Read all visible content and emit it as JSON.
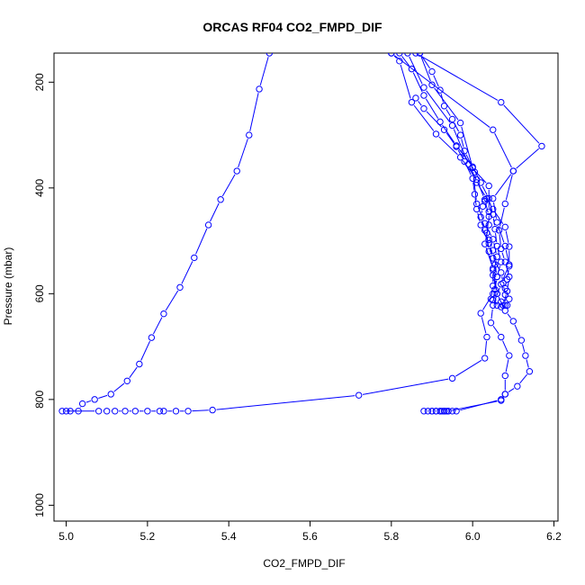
{
  "chart_data": {
    "type": "scatter",
    "title": "ORCAS RF04 CO2_FMPD_DIF",
    "xlabel": "CO2_FMPD_DIF",
    "ylabel": "Pressure (mbar)",
    "xlim": [
      4.97,
      6.21
    ],
    "ylim": [
      1030,
      145
    ],
    "y_axis_inverted": true,
    "xticks": [
      "5.0",
      "5.2",
      "5.4",
      "5.6",
      "5.8",
      "6.0",
      "6.2"
    ],
    "yticks": [
      "200",
      "400",
      "600",
      "800",
      "1000"
    ],
    "colors": {
      "series": "#0000ff",
      "axes": "#000000",
      "background": "#ffffff"
    },
    "grid": false,
    "series": [
      {
        "style": "line-with-circles",
        "points": [
          [
            5.5,
            145
          ],
          [
            5.475,
            213
          ],
          [
            5.45,
            300
          ],
          [
            5.42,
            368
          ],
          [
            5.38,
            422
          ],
          [
            5.35,
            470
          ],
          [
            5.315,
            532
          ],
          [
            5.28,
            588
          ],
          [
            5.24,
            638
          ],
          [
            5.21,
            683
          ],
          [
            5.18,
            733
          ],
          [
            5.15,
            765
          ],
          [
            5.11,
            790
          ],
          [
            5.07,
            800
          ],
          [
            5.04,
            808
          ],
          [
            5.03,
            822
          ],
          [
            5.01,
            822
          ],
          [
            5.0,
            822
          ],
          [
            4.99,
            822
          ],
          [
            5.08,
            822
          ],
          [
            5.1,
            822
          ],
          [
            5.12,
            822
          ],
          [
            5.145,
            822
          ],
          [
            5.17,
            822
          ],
          [
            5.2,
            822
          ],
          [
            5.23,
            822
          ],
          [
            5.24,
            822
          ],
          [
            5.27,
            822
          ],
          [
            5.3,
            822
          ],
          [
            5.36,
            820
          ],
          [
            5.72,
            792
          ],
          [
            5.95,
            760
          ],
          [
            6.03,
            722
          ],
          [
            6.035,
            682
          ],
          [
            6.02,
            637
          ],
          [
            6.05,
            600
          ],
          [
            6.06,
            568
          ],
          [
            6.07,
            540
          ],
          [
            6.06,
            510
          ],
          [
            6.055,
            478
          ],
          [
            6.05,
            450
          ],
          [
            6.04,
            420
          ],
          [
            6.02,
            390
          ],
          [
            6.0,
            360
          ],
          [
            5.96,
            320
          ],
          [
            5.92,
            275
          ],
          [
            5.88,
            225
          ],
          [
            5.85,
            175
          ],
          [
            5.82,
            145
          ]
        ]
      },
      {
        "style": "line-with-circles",
        "points": [
          [
            5.87,
            145
          ],
          [
            5.9,
            205
          ],
          [
            5.97,
            277
          ],
          [
            6.0,
            362
          ],
          [
            6.01,
            430
          ],
          [
            6.03,
            467
          ],
          [
            6.05,
            497
          ],
          [
            6.06,
            530
          ],
          [
            6.05,
            565
          ],
          [
            6.06,
            600
          ],
          [
            6.07,
            615
          ],
          [
            6.085,
            622
          ],
          [
            6.09,
            610
          ],
          [
            6.08,
            590
          ],
          [
            6.085,
            573
          ],
          [
            6.09,
            548
          ],
          [
            6.09,
            511
          ],
          [
            6.08,
            474
          ],
          [
            6.05,
            440
          ],
          [
            6.035,
            420
          ],
          [
            6.01,
            390
          ],
          [
            6.005,
            370
          ],
          [
            5.98,
            330
          ],
          [
            5.97,
            300
          ],
          [
            5.95,
            270
          ],
          [
            5.93,
            245
          ],
          [
            5.92,
            215
          ],
          [
            5.9,
            180
          ],
          [
            5.87,
            145
          ]
        ]
      },
      {
        "style": "line-with-circles",
        "points": [
          [
            5.84,
            145
          ],
          [
            5.88,
            210
          ],
          [
            5.95,
            282
          ],
          [
            5.99,
            355
          ],
          [
            6.04,
            396
          ],
          [
            6.04,
            445
          ],
          [
            6.04,
            470
          ],
          [
            6.03,
            506
          ],
          [
            6.05,
            552
          ],
          [
            6.06,
            600
          ],
          [
            6.08,
            632
          ],
          [
            6.1,
            652
          ],
          [
            6.12,
            688
          ],
          [
            6.13,
            717
          ],
          [
            6.14,
            747
          ],
          [
            6.11,
            775
          ],
          [
            6.08,
            790
          ],
          [
            6.07,
            800
          ],
          [
            5.96,
            822
          ],
          [
            5.95,
            822
          ],
          [
            5.94,
            822
          ],
          [
            5.935,
            822
          ],
          [
            5.93,
            822
          ],
          [
            5.925,
            822
          ],
          [
            5.92,
            822
          ],
          [
            5.91,
            822
          ],
          [
            5.9,
            822
          ],
          [
            5.89,
            822
          ],
          [
            5.88,
            822
          ]
        ]
      },
      {
        "style": "line-with-circles",
        "points": [
          [
            5.86,
            145
          ],
          [
            6.07,
            238
          ],
          [
            6.17,
            321
          ],
          [
            6.1,
            368
          ],
          [
            6.05,
            420
          ],
          [
            6.06,
            465
          ],
          [
            6.08,
            510
          ],
          [
            6.09,
            545
          ],
          [
            6.07,
            582
          ],
          [
            6.05,
            622
          ],
          [
            6.045,
            655
          ],
          [
            6.07,
            682
          ],
          [
            6.09,
            717
          ],
          [
            6.08,
            755
          ],
          [
            6.08,
            790
          ],
          [
            6.07,
            802
          ],
          [
            5.94,
            822
          ],
          [
            5.93,
            822
          ],
          [
            5.92,
            822
          ],
          [
            5.91,
            822
          ],
          [
            5.9,
            822
          ]
        ]
      },
      {
        "style": "line-with-circles",
        "points": [
          [
            5.8,
            145
          ],
          [
            5.82,
            160
          ],
          [
            5.85,
            238
          ],
          [
            5.91,
            298
          ],
          [
            5.97,
            342
          ],
          [
            6.01,
            384
          ],
          [
            6.03,
            422
          ],
          [
            6.04,
            454
          ],
          [
            6.035,
            485
          ],
          [
            6.04,
            520
          ],
          [
            6.05,
            555
          ],
          [
            6.05,
            585
          ],
          [
            6.045,
            610
          ],
          [
            6.07,
            625
          ],
          [
            6.08,
            622
          ],
          [
            6.08,
            602
          ],
          [
            6.075,
            580
          ],
          [
            6.07,
            560
          ],
          [
            6.05,
            533
          ],
          [
            6.04,
            505
          ],
          [
            6.02,
            470
          ],
          [
            6.01,
            440
          ],
          [
            6.005,
            412
          ],
          [
            6.0,
            382
          ],
          [
            5.98,
            350
          ],
          [
            5.96,
            322
          ],
          [
            5.93,
            290
          ],
          [
            5.88,
            250
          ],
          [
            5.86,
            230
          ]
        ]
      },
      {
        "style": "line-with-circles",
        "points": [
          [
            5.8,
            145
          ],
          [
            6.05,
            290
          ],
          [
            6.1,
            368
          ],
          [
            6.08,
            430
          ],
          [
            6.065,
            480
          ],
          [
            6.07,
            515
          ],
          [
            6.08,
            540
          ],
          [
            6.09,
            568
          ],
          [
            6.085,
            595
          ],
          [
            6.075,
            622
          ],
          [
            6.06,
            622
          ],
          [
            6.05,
            612
          ],
          [
            6.055,
            592
          ],
          [
            6.06,
            568
          ],
          [
            6.055,
            545
          ],
          [
            6.05,
            518
          ],
          [
            6.04,
            498
          ],
          [
            6.03,
            480
          ],
          [
            6.02,
            455
          ],
          [
            6.025,
            435
          ],
          [
            6.03,
            425
          ]
        ]
      }
    ]
  }
}
